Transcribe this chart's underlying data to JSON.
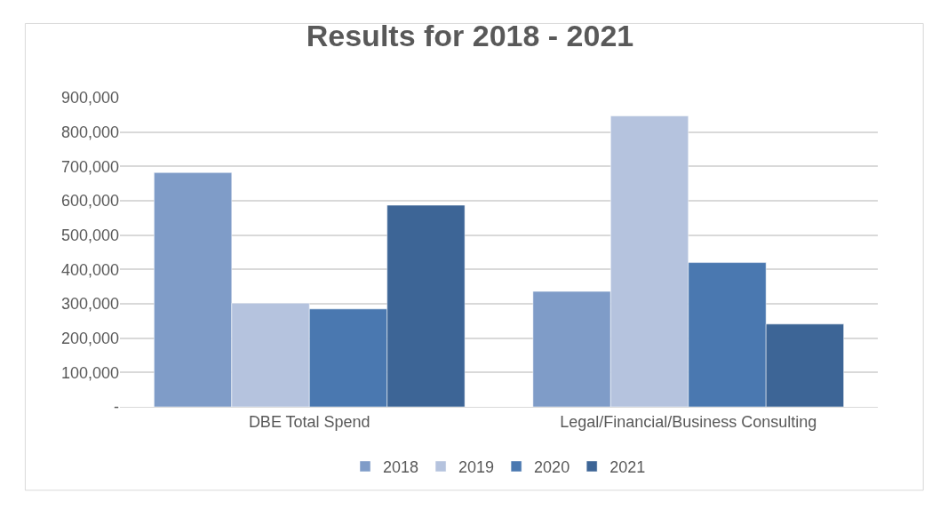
{
  "chart_data": {
    "type": "bar",
    "title": "Results for 2018 - 2021",
    "categories": [
      "DBE Total Spend",
      "Legal/Financial/Business Consulting"
    ],
    "series": [
      {
        "name": "2018",
        "color": "#7f9cc8",
        "values": [
          682000,
          336000
        ]
      },
      {
        "name": "2019",
        "color": "#b5c3de",
        "values": [
          302000,
          847000
        ]
      },
      {
        "name": "2020",
        "color": "#4a78b0",
        "values": [
          285000,
          420000
        ]
      },
      {
        "name": "2021",
        "color": "#3d6596",
        "values": [
          587000,
          241000
        ]
      }
    ],
    "ylim": [
      0,
      900000
    ],
    "yticks": [
      {
        "value": 0,
        "label": "-"
      },
      {
        "value": 100000,
        "label": "100,000"
      },
      {
        "value": 200000,
        "label": "200,000"
      },
      {
        "value": 300000,
        "label": "300,000"
      },
      {
        "value": 400000,
        "label": "400,000"
      },
      {
        "value": 500000,
        "label": "500,000"
      },
      {
        "value": 600000,
        "label": "600,000"
      },
      {
        "value": 700000,
        "label": "700,000"
      },
      {
        "value": 800000,
        "label": "800,000"
      },
      {
        "value": 900000,
        "label": "900,000"
      }
    ],
    "grid": "y",
    "legend": "bottom"
  }
}
